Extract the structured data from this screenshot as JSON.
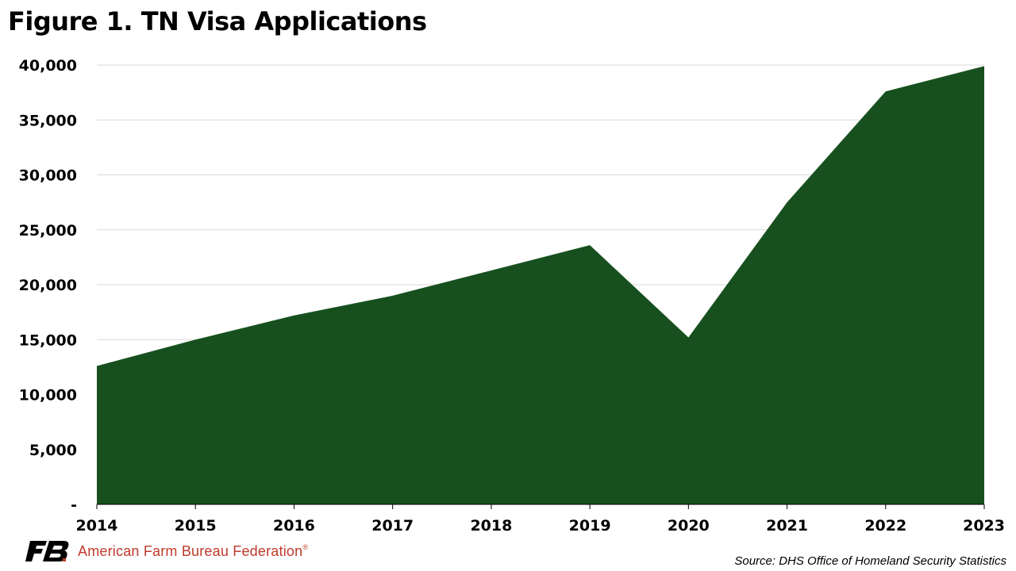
{
  "title": "Figure 1. TN Visa Applications",
  "source": "Source: DHS Office of Homeland Security Statistics",
  "logo": {
    "text": "American Farm Bureau Federation",
    "registered": "®",
    "icon": "afbf-logo-icon",
    "mark_color": "#000000",
    "text_color": "#c0392b"
  },
  "colors": {
    "area_fill": "#17501e",
    "grid": "#d9d9d9",
    "axis": "#000000"
  },
  "chart_data": {
    "type": "area",
    "title": "Figure 1. TN Visa Applications",
    "xlabel": "",
    "ylabel": "",
    "categories": [
      "2014",
      "2015",
      "2016",
      "2017",
      "2018",
      "2019",
      "2020",
      "2021",
      "2022",
      "2023"
    ],
    "values": [
      12600,
      15000,
      17200,
      19000,
      21300,
      23600,
      15200,
      27500,
      37600,
      39900
    ],
    "ylim": [
      0,
      40000
    ],
    "yticks": [
      0,
      5000,
      10000,
      15000,
      20000,
      25000,
      30000,
      35000,
      40000
    ],
    "ytick_labels": [
      "-",
      "5,000",
      "10,000",
      "15,000",
      "20,000",
      "25,000",
      "30,000",
      "35,000",
      "40,000"
    ],
    "grid": true,
    "legend": "none"
  }
}
